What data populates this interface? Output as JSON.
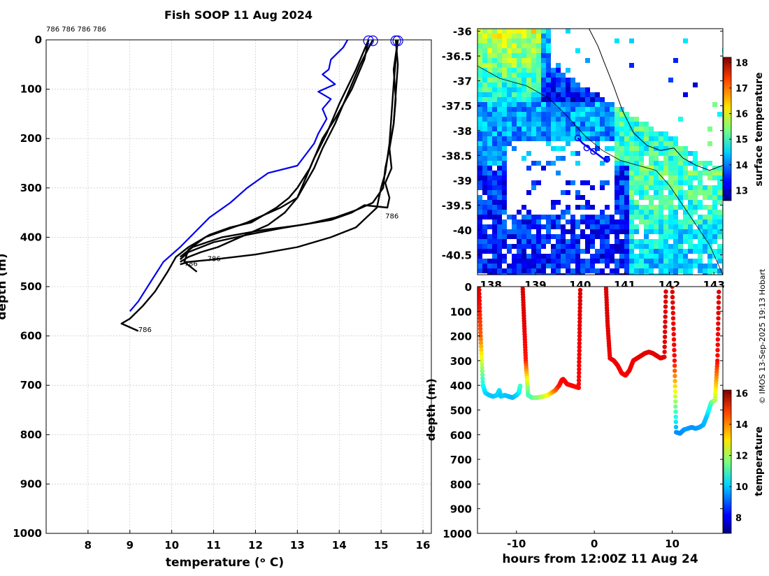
{
  "title": "Fish SOOP 11 Aug 2024",
  "credit": "© IMOS 13-Sep-2025 19:13 Hobart",
  "colors": {
    "profile": "#000000",
    "climatology": "#0000ee",
    "grid": "#bdbdbd",
    "land": "#ffffff",
    "track": "#0000ee"
  },
  "chart_data": [
    {
      "id": "profile",
      "type": "line",
      "title": "Fish SOOP 11 Aug 2024",
      "xlabel": "temperature (ᵒ C)",
      "ylabel": "depth (m)",
      "xlim": [
        7,
        16.2
      ],
      "ylim": [
        1000,
        0
      ],
      "xticks": [
        8,
        9,
        10,
        11,
        12,
        13,
        14,
        15,
        16
      ],
      "yticks": [
        0,
        100,
        200,
        300,
        400,
        500,
        600,
        700,
        800,
        900,
        1000
      ],
      "grid": true,
      "top_labels": "786 786 786 786",
      "drop_markers": [
        {
          "x": 14.7,
          "y": 2
        },
        {
          "x": 14.8,
          "y": 2
        },
        {
          "x": 15.35,
          "y": 2
        },
        {
          "x": 15.4,
          "y": 2
        }
      ],
      "annotations": [
        {
          "text": "786",
          "x": 15.1,
          "y": 362
        },
        {
          "text": "786",
          "x": 10.3,
          "y": 458
        },
        {
          "text": "786",
          "x": 10.85,
          "y": 448
        },
        {
          "text": "786",
          "x": 9.2,
          "y": 592
        }
      ],
      "series": [
        {
          "name": "climatology",
          "color": "#0000ee",
          "x": [
            14.2,
            14.1,
            13.8,
            13.75,
            13.6,
            13.9,
            13.5,
            13.8,
            13.6,
            13.7,
            13.6,
            13.5,
            13.4,
            13.0,
            12.3,
            11.8,
            11.4,
            10.9,
            10.2,
            9.8,
            9.5,
            9.2,
            9.0
          ],
          "y": [
            0,
            15,
            40,
            60,
            70,
            90,
            105,
            120,
            140,
            160,
            175,
            190,
            210,
            255,
            270,
            300,
            330,
            360,
            420,
            450,
            490,
            530,
            550
          ]
        },
        {
          "name": "cast1",
          "color": "#000000",
          "x": [
            14.7,
            14.6,
            14.3,
            13.9,
            13.6,
            13.3,
            13.0,
            12.8,
            12.5,
            12.2,
            11.9,
            11.4,
            10.9,
            10.4,
            10.1,
            9.9,
            9.6,
            9.3,
            9.0,
            8.8,
            9.2
          ],
          "y": [
            0,
            40,
            100,
            160,
            200,
            260,
            300,
            320,
            340,
            355,
            370,
            380,
            395,
            420,
            440,
            470,
            510,
            540,
            565,
            575,
            590
          ]
        },
        {
          "name": "cast2",
          "color": "#000000",
          "x": [
            14.8,
            14.5,
            14.2,
            13.9,
            13.6,
            13.4,
            13.2,
            13.0,
            12.6,
            12.2,
            11.8,
            11.3,
            10.8,
            10.4,
            10.3,
            10.6
          ],
          "y": [
            0,
            50,
            110,
            170,
            220,
            260,
            290,
            320,
            340,
            355,
            370,
            385,
            400,
            425,
            450,
            470
          ]
        },
        {
          "name": "cast3",
          "color": "#000000",
          "x": [
            14.7,
            14.4,
            14.0,
            13.7,
            13.4,
            13.2,
            13.0,
            12.7,
            12.3,
            11.9,
            11.5,
            11.1,
            10.7,
            10.4,
            10.2
          ],
          "y": [
            0,
            60,
            130,
            190,
            240,
            280,
            320,
            350,
            375,
            390,
            405,
            420,
            430,
            440,
            450
          ]
        },
        {
          "name": "cast4",
          "color": "#000000",
          "x": [
            15.4,
            15.3,
            15.35,
            15.3,
            15.2,
            15.25,
            15.1,
            15.2,
            15.15,
            14.6,
            14.3,
            13.8,
            13.1,
            12.2,
            11.2,
            10.5,
            10.2
          ],
          "y": [
            0,
            60,
            120,
            170,
            220,
            260,
            290,
            320,
            340,
            335,
            350,
            365,
            375,
            385,
            400,
            420,
            440
          ]
        },
        {
          "name": "cast5",
          "color": "#000000",
          "x": [
            15.35,
            15.4,
            15.35,
            15.3,
            15.2,
            15.1,
            15.05,
            14.8,
            14.4,
            13.9,
            13.3,
            12.6,
            11.8,
            11.0,
            10.4,
            10.2
          ],
          "y": [
            0,
            50,
            110,
            170,
            220,
            260,
            300,
            330,
            345,
            360,
            372,
            382,
            395,
            410,
            430,
            445
          ]
        },
        {
          "name": "cast6",
          "color": "#000000",
          "x": [
            15.4,
            15.35,
            15.3,
            15.25,
            15.2,
            15.1,
            15.0,
            14.9,
            14.4,
            13.8,
            13.0,
            12.0,
            11.0,
            10.4,
            10.2
          ],
          "y": [
            0,
            40,
            90,
            150,
            210,
            270,
            300,
            340,
            380,
            400,
            420,
            435,
            445,
            450,
            455
          ]
        }
      ]
    },
    {
      "id": "map",
      "type": "heatmap",
      "xlabel": "",
      "ylabel": "",
      "xlim": [
        137.7,
        143.2
      ],
      "ylim": [
        -40.9,
        -35.95
      ],
      "xticks": [
        138,
        139,
        140,
        141,
        142,
        143
      ],
      "xtick_labels": [
        "138",
        "139",
        "140",
        "141",
        "142",
        "143"
      ],
      "yticks": [
        -36,
        -36.5,
        -37,
        -37.5,
        -38,
        -38.5,
        -39,
        -39.5,
        -40,
        -40.5
      ],
      "ytick_labels": [
        "-36",
        "-36.5",
        "-37",
        "-37.5",
        "-38",
        "-38.5",
        "-39",
        "-39.5",
        "-40",
        "-40.5"
      ],
      "colorbar": {
        "label": "surface temperature",
        "range": [
          12.6,
          18.2
        ],
        "ticks": [
          13,
          14,
          15,
          16,
          17,
          18
        ]
      },
      "ship_track": {
        "lon": [
          139.95,
          140.05,
          140.2,
          140.35,
          140.5,
          140.62
        ],
        "lat": [
          -38.15,
          -38.25,
          -38.35,
          -38.45,
          -38.55,
          -38.62
        ]
      },
      "drop_markers": [
        {
          "lon": 139.95,
          "lat": -38.15
        },
        {
          "lon": 140.15,
          "lat": -38.35
        },
        {
          "lon": 140.3,
          "lat": -38.42
        },
        {
          "lon": 140.6,
          "lat": -38.58
        }
      ],
      "coastline": {
        "lon": [
          140.2,
          140.4,
          140.55,
          140.75,
          140.95,
          141.2,
          141.5,
          141.8,
          142.1,
          142.3,
          142.6,
          142.9,
          143.2
        ],
        "lat": [
          -35.95,
          -36.3,
          -36.65,
          -37.1,
          -37.6,
          -38.05,
          -38.3,
          -38.4,
          -38.35,
          -38.55,
          -38.7,
          -38.8,
          -38.7
        ]
      },
      "shelf_edge": {
        "lon": [
          137.7,
          138.2,
          138.8,
          139.3,
          139.7,
          140.1,
          140.5,
          140.9,
          141.3,
          141.7,
          142.0,
          142.3,
          142.6,
          142.9,
          143.2
        ],
        "lat": [
          -36.7,
          -36.95,
          -37.1,
          -37.35,
          -37.7,
          -38.1,
          -38.4,
          -38.6,
          -38.7,
          -38.8,
          -39.1,
          -39.5,
          -39.9,
          -40.3,
          -40.9
        ]
      }
    },
    {
      "id": "section",
      "type": "scatter",
      "xlabel": "hours from 12:00Z 11 Aug 24",
      "ylabel": "depth (m)",
      "xlim": [
        -15,
        16.5
      ],
      "ylim": [
        1000,
        0
      ],
      "xticks": [
        -10,
        0,
        10
      ],
      "yticks": [
        0,
        100,
        200,
        300,
        400,
        500,
        600,
        700,
        800,
        900,
        1000
      ],
      "colorbar": {
        "label": "temperature",
        "range": [
          7,
          16.2
        ],
        "ticks": [
          8,
          10,
          12,
          14,
          16
        ]
      },
      "casts": [
        {
          "x": [
            -14.8,
            -14.6,
            -14.3,
            -14.0,
            -13.5,
            -13.0,
            -12.5,
            -12.2,
            -12.0,
            -11.5,
            -11.0,
            -10.5,
            -10.0,
            -9.7,
            -9.5
          ],
          "y": [
            0,
            200,
            400,
            430,
            440,
            445,
            440,
            420,
            445,
            440,
            445,
            450,
            440,
            430,
            400
          ],
          "t": [
            15.4,
            14.2,
            10.6,
            10.2,
            10.0,
            9.9,
            10.0,
            10.2,
            10.0,
            10.0,
            9.9,
            9.8,
            10.0,
            10.2,
            11.0
          ]
        },
        {
          "x": [
            -9.2,
            -9.0,
            -8.8,
            -8.5,
            -8.0,
            -7.5,
            -7.0,
            -6.5,
            -6.0,
            -5.5,
            -5.0,
            -4.5,
            -4.2,
            -4.0,
            -3.5,
            -3.0,
            -2.5,
            -2.0,
            -1.9,
            -1.8
          ],
          "y": [
            0,
            150,
            300,
            440,
            450,
            450,
            448,
            445,
            440,
            430,
            420,
            400,
            380,
            375,
            395,
            400,
            405,
            410,
            200,
            0
          ],
          "t": [
            15.4,
            15.3,
            14.8,
            11.0,
            11.2,
            11.6,
            11.8,
            12.2,
            12.6,
            13.2,
            14.0,
            14.8,
            15.0,
            15.1,
            15.1,
            15.0,
            15.0,
            15.0,
            15.2,
            15.4
          ]
        },
        {
          "x": [
            1.5,
            1.7,
            2.0,
            2.5,
            3.0,
            3.5,
            4.0,
            4.5,
            5.0,
            5.5,
            6.0,
            6.5,
            7.0,
            7.5,
            8.0,
            8.5,
            9.0,
            9.2
          ],
          "y": [
            0,
            150,
            290,
            300,
            320,
            350,
            360,
            340,
            300,
            290,
            280,
            270,
            265,
            270,
            280,
            290,
            285,
            0
          ],
          "t": [
            15.4,
            15.3,
            15.2,
            15.2,
            15.2,
            15.1,
            15.1,
            15.2,
            15.2,
            15.2,
            15.3,
            15.3,
            15.3,
            15.3,
            15.3,
            15.3,
            15.3,
            15.4
          ]
        },
        {
          "x": [
            10.0,
            10.3,
            10.5,
            11.0,
            11.5,
            12.0,
            12.5,
            13.0,
            13.5,
            14.0,
            14.5,
            15.0,
            15.5,
            15.8,
            16.0
          ],
          "y": [
            0,
            300,
            590,
            595,
            580,
            575,
            570,
            575,
            570,
            560,
            520,
            470,
            460,
            300,
            0
          ],
          "t": [
            15.4,
            15.0,
            9.5,
            9.4,
            9.5,
            9.6,
            9.5,
            9.5,
            9.6,
            9.7,
            10.0,
            11.0,
            12.0,
            15.0,
            15.4
          ]
        }
      ]
    }
  ]
}
